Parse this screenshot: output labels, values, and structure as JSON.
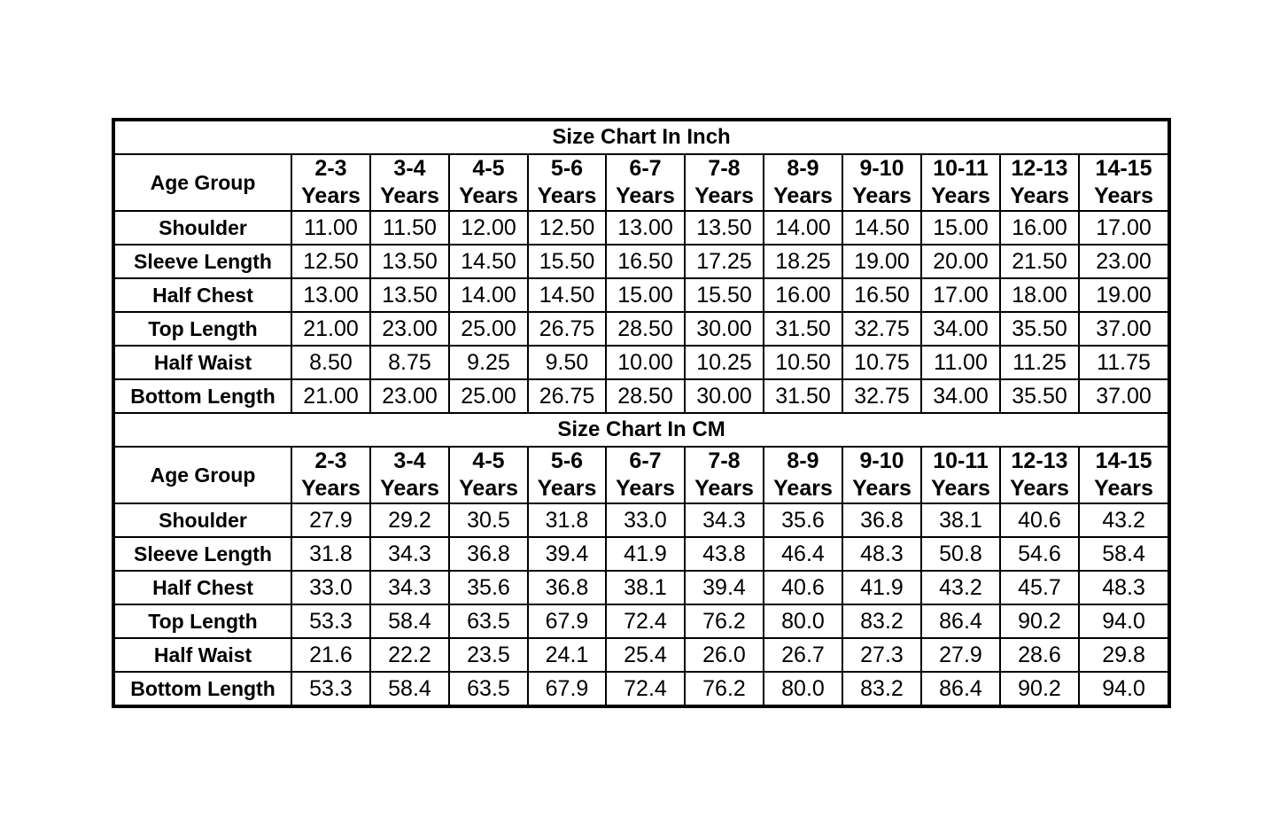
{
  "age_header": "Age Group",
  "age_groups": [
    [
      "2-3",
      "Years"
    ],
    [
      "3-4",
      "Years"
    ],
    [
      "4-5",
      "Years"
    ],
    [
      "5-6",
      "Years"
    ],
    [
      "6-7",
      "Years"
    ],
    [
      "7-8",
      "Years"
    ],
    [
      "8-9",
      "Years"
    ],
    [
      "9-10",
      "Years"
    ],
    [
      "10-11",
      "Years"
    ],
    [
      "12-13",
      "Years"
    ],
    [
      "14-15",
      "Years"
    ]
  ],
  "tables": [
    {
      "title": "Size Chart In Inch",
      "rows": [
        {
          "label": "Shoulder",
          "values": [
            "11.00",
            "11.50",
            "12.00",
            "12.50",
            "13.00",
            "13.50",
            "14.00",
            "14.50",
            "15.00",
            "16.00",
            "17.00"
          ]
        },
        {
          "label": "Sleeve Length",
          "values": [
            "12.50",
            "13.50",
            "14.50",
            "15.50",
            "16.50",
            "17.25",
            "18.25",
            "19.00",
            "20.00",
            "21.50",
            "23.00"
          ]
        },
        {
          "label": "Half Chest",
          "values": [
            "13.00",
            "13.50",
            "14.00",
            "14.50",
            "15.00",
            "15.50",
            "16.00",
            "16.50",
            "17.00",
            "18.00",
            "19.00"
          ]
        },
        {
          "label": "Top Length",
          "values": [
            "21.00",
            "23.00",
            "25.00",
            "26.75",
            "28.50",
            "30.00",
            "31.50",
            "32.75",
            "34.00",
            "35.50",
            "37.00"
          ]
        },
        {
          "label": "Half Waist",
          "values": [
            "8.50",
            "8.75",
            "9.25",
            "9.50",
            "10.00",
            "10.25",
            "10.50",
            "10.75",
            "11.00",
            "11.25",
            "11.75"
          ]
        },
        {
          "label": "Bottom Length",
          "values": [
            "21.00",
            "23.00",
            "25.00",
            "26.75",
            "28.50",
            "30.00",
            "31.50",
            "32.75",
            "34.00",
            "35.50",
            "37.00"
          ]
        }
      ]
    },
    {
      "title": "Size Chart In CM",
      "rows": [
        {
          "label": "Shoulder",
          "values": [
            "27.9",
            "29.2",
            "30.5",
            "31.8",
            "33.0",
            "34.3",
            "35.6",
            "36.8",
            "38.1",
            "40.6",
            "43.2"
          ]
        },
        {
          "label": "Sleeve Length",
          "values": [
            "31.8",
            "34.3",
            "36.8",
            "39.4",
            "41.9",
            "43.8",
            "46.4",
            "48.3",
            "50.8",
            "54.6",
            "58.4"
          ]
        },
        {
          "label": "Half Chest",
          "values": [
            "33.0",
            "34.3",
            "35.6",
            "36.8",
            "38.1",
            "39.4",
            "40.6",
            "41.9",
            "43.2",
            "45.7",
            "48.3"
          ]
        },
        {
          "label": "Top Length",
          "values": [
            "53.3",
            "58.4",
            "63.5",
            "67.9",
            "72.4",
            "76.2",
            "80.0",
            "83.2",
            "86.4",
            "90.2",
            "94.0"
          ]
        },
        {
          "label": "Half Waist",
          "values": [
            "21.6",
            "22.2",
            "23.5",
            "24.1",
            "25.4",
            "26.0",
            "26.7",
            "27.3",
            "27.9",
            "28.6",
            "29.8"
          ]
        },
        {
          "label": "Bottom Length",
          "values": [
            "53.3",
            "58.4",
            "63.5",
            "67.9",
            "72.4",
            "76.2",
            "80.0",
            "83.2",
            "86.4",
            "90.2",
            "94.0"
          ]
        }
      ]
    }
  ]
}
